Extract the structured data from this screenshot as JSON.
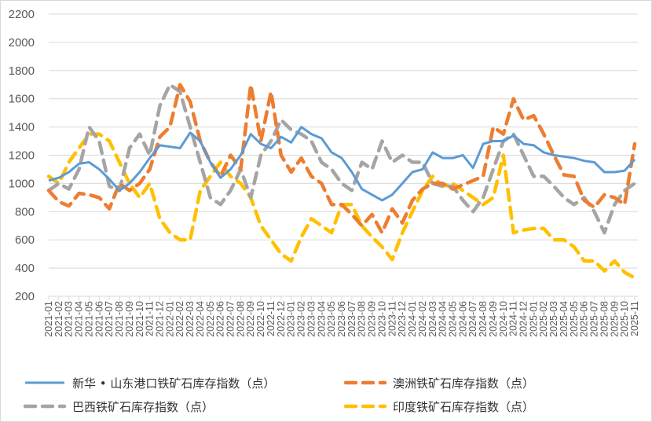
{
  "chart_data": {
    "type": "line",
    "title": "",
    "xlabel": "",
    "ylabel": "",
    "ylim": [
      200,
      2200
    ],
    "yticks": [
      200,
      400,
      600,
      800,
      1000,
      1200,
      1400,
      1600,
      1800,
      2000,
      2200
    ],
    "grid": true,
    "legend_position": "bottom",
    "categories": [
      "2021-01",
      "2021-02",
      "2021-03",
      "2021-04",
      "2021-05",
      "2021-06",
      "2021-07",
      "2021-08",
      "2021-09",
      "2021-10",
      "2021-11",
      "2021-12",
      "2022-01",
      "2022-02",
      "2022-03",
      "2022-04",
      "2022-05",
      "2022-06",
      "2022-07",
      "2022-08",
      "2022-09",
      "2022-10",
      "2022-11",
      "2022-12",
      "2023-01",
      "2023-02",
      "2023-03",
      "2023-04",
      "2023-05",
      "2023-06",
      "2023-07",
      "2023-08",
      "2023-09",
      "2023-10",
      "2023-11",
      "2023-12",
      "2024-01",
      "2024-02",
      "2024-03",
      "2024-04",
      "2024-05",
      "2024-06",
      "2024-07",
      "2024-08",
      "2024-09",
      "2024-10",
      "2024-11",
      "2024-12",
      "2025-01",
      "2025-02",
      "2025-03",
      "2025-04",
      "2025-05",
      "2025-06",
      "2025-07",
      "2025-08",
      "2025-09",
      "2025-10",
      "2025-11"
    ],
    "series": [
      {
        "name": "新华 • 山东港口铁矿石库存指数（点）",
        "color": "#5B9BD5",
        "style": "solid",
        "values": [
          1020,
          1040,
          1080,
          1140,
          1150,
          1100,
          1030,
          950,
          1000,
          1080,
          1180,
          1270,
          1260,
          1250,
          1360,
          1300,
          1150,
          1040,
          1100,
          1200,
          1350,
          1280,
          1250,
          1330,
          1290,
          1400,
          1350,
          1320,
          1220,
          1180,
          1080,
          960,
          920,
          880,
          920,
          1000,
          1080,
          1100,
          1220,
          1180,
          1180,
          1200,
          1110,
          1280,
          1300,
          1300,
          1340,
          1280,
          1270,
          1220,
          1200,
          1190,
          1180,
          1160,
          1150,
          1080,
          1080,
          1090,
          1170
        ]
      },
      {
        "name": "澳洲铁矿石库存指数（点）",
        "color": "#ED7D31",
        "style": "dashed",
        "values": [
          950,
          870,
          840,
          930,
          920,
          900,
          820,
          1000,
          950,
          1000,
          1100,
          1330,
          1400,
          1700,
          1580,
          1300,
          1150,
          1050,
          1200,
          1100,
          1700,
          1300,
          1650,
          1200,
          1080,
          1180,
          1050,
          1000,
          850,
          850,
          780,
          700,
          780,
          650,
          820,
          720,
          880,
          960,
          1000,
          1000,
          960,
          990,
          1020,
          1050,
          1400,
          1350,
          1600,
          1450,
          1480,
          1350,
          1200,
          1060,
          1050,
          880,
          830,
          920,
          900,
          850,
          1280
        ]
      },
      {
        "name": "巴西铁矿石库存指数（点）",
        "color": "#A5A5A5",
        "style": "dashed",
        "values": [
          950,
          1000,
          960,
          1100,
          1400,
          1300,
          980,
          950,
          1250,
          1350,
          1200,
          1550,
          1700,
          1650,
          1400,
          1150,
          900,
          850,
          950,
          1100,
          900,
          1200,
          1300,
          1450,
          1380,
          1350,
          1300,
          1150,
          1100,
          1000,
          950,
          1150,
          1100,
          1300,
          1150,
          1200,
          1150,
          1150,
          1000,
          980,
          980,
          880,
          800,
          900,
          1100,
          1300,
          1350,
          1200,
          1050,
          1050,
          980,
          900,
          850,
          900,
          800,
          650,
          850,
          950,
          1000
        ]
      },
      {
        "name": "印度铁矿石库存指数（点）",
        "color": "#FFC000",
        "style": "dashed",
        "values": [
          1050,
          1000,
          1150,
          1250,
          1350,
          1350,
          1300,
          1150,
          1000,
          900,
          1000,
          750,
          650,
          600,
          600,
          950,
          1050,
          1150,
          1050,
          1000,
          900,
          700,
          600,
          500,
          450,
          620,
          750,
          700,
          650,
          850,
          850,
          700,
          620,
          550,
          460,
          650,
          800,
          950,
          1050,
          980,
          1000,
          950,
          900,
          850,
          900,
          1200,
          650,
          670,
          680,
          680,
          600,
          600,
          550,
          450,
          450,
          380,
          450,
          370,
          330
        ]
      }
    ]
  }
}
